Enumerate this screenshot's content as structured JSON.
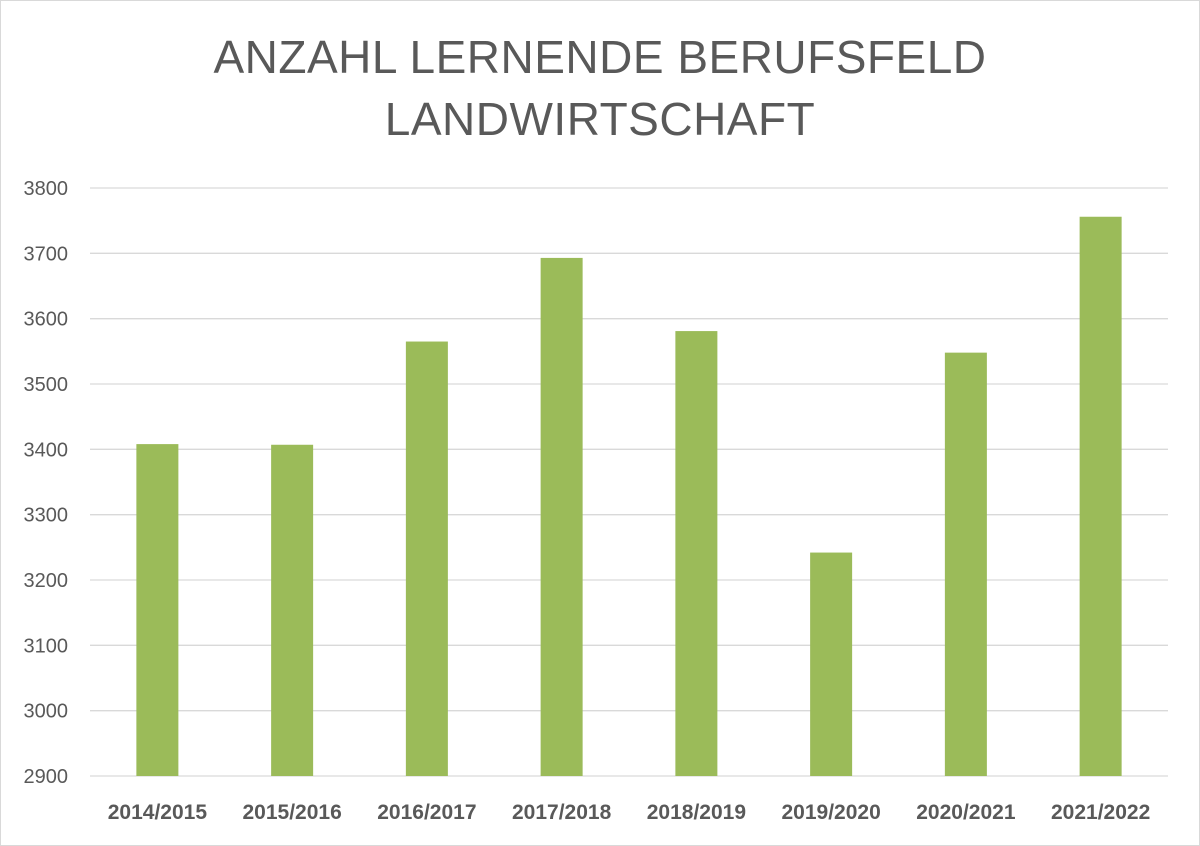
{
  "chart_data": {
    "type": "bar",
    "title_lines": [
      "ANZAHL LERNENDE BERUFSFELD",
      "LANDWIRTSCHAFT"
    ],
    "categories": [
      "2014/2015",
      "2015/2016",
      "2016/2017",
      "2017/2018",
      "2018/2019",
      "2019/2020",
      "2020/2021",
      "2021/2022"
    ],
    "values": [
      3408,
      3407,
      3565,
      3693,
      3581,
      3242,
      3548,
      3756
    ],
    "ylim": [
      2900,
      3800
    ],
    "yticks": [
      2900,
      3000,
      3100,
      3200,
      3300,
      3400,
      3500,
      3600,
      3700,
      3800
    ],
    "grid": true,
    "legend": "none",
    "colors": {
      "bar": "#9bbb59",
      "grid": "#d9d9d9",
      "text": "#595959"
    }
  }
}
